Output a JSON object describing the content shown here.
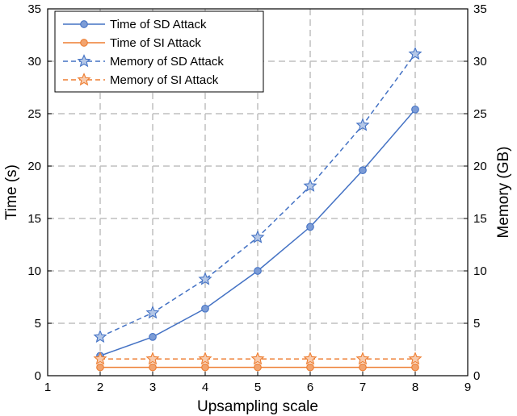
{
  "chart_data": {
    "type": "line",
    "xlabel": "Upsampling scale",
    "ylabel_left": "Time (s)",
    "ylabel_right": "Memory (GB)",
    "xlim": [
      1,
      9
    ],
    "ylim_left": [
      0,
      35
    ],
    "ylim_right": [
      0,
      35
    ],
    "x_ticks": [
      "1",
      "2",
      "3",
      "4",
      "5",
      "6",
      "7",
      "8",
      "9"
    ],
    "y_ticks_left": [
      "0",
      "5",
      "10",
      "15",
      "20",
      "25",
      "30",
      "35"
    ],
    "y_ticks_right": [
      "0",
      "5",
      "10",
      "15",
      "20",
      "25",
      "30",
      "35"
    ],
    "grid": true,
    "legend_position": "top-left",
    "x": [
      2,
      3,
      4,
      5,
      6,
      7,
      8
    ],
    "series": [
      {
        "name": "Time of SD Attack",
        "values": [
          1.9,
          3.7,
          6.4,
          10.0,
          14.2,
          19.6,
          25.4
        ],
        "color": "#4472c4",
        "dash": "solid",
        "marker": "circle",
        "axis": "left"
      },
      {
        "name": "Time of SI Attack",
        "values": [
          0.8,
          0.8,
          0.8,
          0.8,
          0.8,
          0.8,
          0.8
        ],
        "color": "#ed7d31",
        "dash": "solid",
        "marker": "circle",
        "axis": "left"
      },
      {
        "name": "Memory of SD Attack",
        "values": [
          3.7,
          6.0,
          9.2,
          13.2,
          18.1,
          23.9,
          30.7
        ],
        "color": "#4472c4",
        "dash": "dashed",
        "marker": "star",
        "axis": "right"
      },
      {
        "name": "Memory of SI Attack",
        "values": [
          1.6,
          1.6,
          1.6,
          1.6,
          1.6,
          1.6,
          1.6
        ],
        "color": "#ed7d31",
        "dash": "dashed",
        "marker": "star",
        "axis": "right"
      }
    ]
  }
}
